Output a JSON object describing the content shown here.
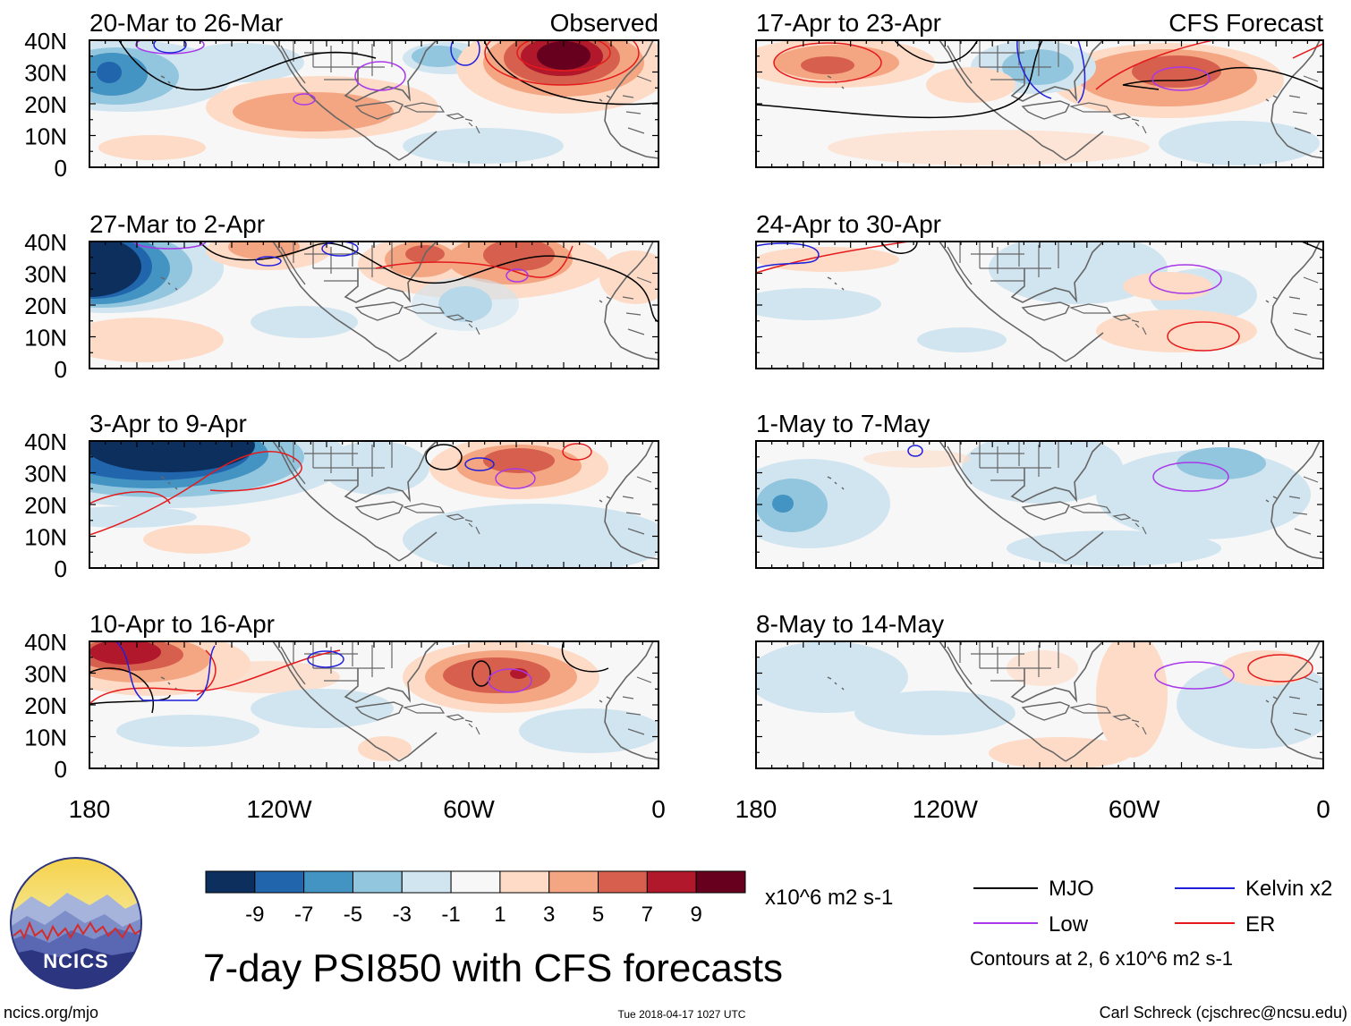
{
  "title": "7-day PSI850 with CFS forecasts",
  "columns": {
    "observed_label": "Observed",
    "forecast_label": "CFS Forecast"
  },
  "panels": {
    "observed": [
      {
        "period": "20-Mar to 26-Mar"
      },
      {
        "period": "27-Mar to 2-Apr"
      },
      {
        "period": "3-Apr to 9-Apr"
      },
      {
        "period": "10-Apr to 16-Apr"
      }
    ],
    "forecast": [
      {
        "period": "17-Apr to 23-Apr"
      },
      {
        "period": "24-Apr to 30-Apr"
      },
      {
        "period": "1-May to 7-May"
      },
      {
        "period": "8-May to 14-May"
      }
    ]
  },
  "axes": {
    "lat_labels": [
      "40N",
      "30N",
      "20N",
      "10N",
      "0"
    ],
    "lon_labels": [
      "180",
      "120W",
      "60W",
      "0"
    ]
  },
  "colorbar": {
    "colors": [
      "#0c2f5e",
      "#2166ac",
      "#4393c3",
      "#92c5de",
      "#d1e5f0",
      "#f7f7f7",
      "#fddbc7",
      "#f4a582",
      "#d6604d",
      "#b2182b",
      "#67001f"
    ],
    "tick_labels": [
      "-9",
      "-7",
      "-5",
      "-3",
      "-1",
      "1",
      "3",
      "5",
      "7",
      "9"
    ],
    "units": "x10^6 m2 s-1"
  },
  "legend": {
    "items": [
      {
        "label": "MJO",
        "color": "#000000"
      },
      {
        "label": "Kelvin x2",
        "color": "#1f1fdc"
      },
      {
        "label": "Low",
        "color": "#a838e8"
      },
      {
        "label": "ER",
        "color": "#e41a1c"
      }
    ],
    "note": "Contours at 2, 6 x10^6 m2 s-1"
  },
  "logo": {
    "text": "NCICS"
  },
  "footer": {
    "website": "ncics.org/mjo",
    "timestamp": "Tue 2018-04-17 1027 UTC",
    "credit": "Carl Schreck (cjschrec@ncsu.edu)"
  }
}
